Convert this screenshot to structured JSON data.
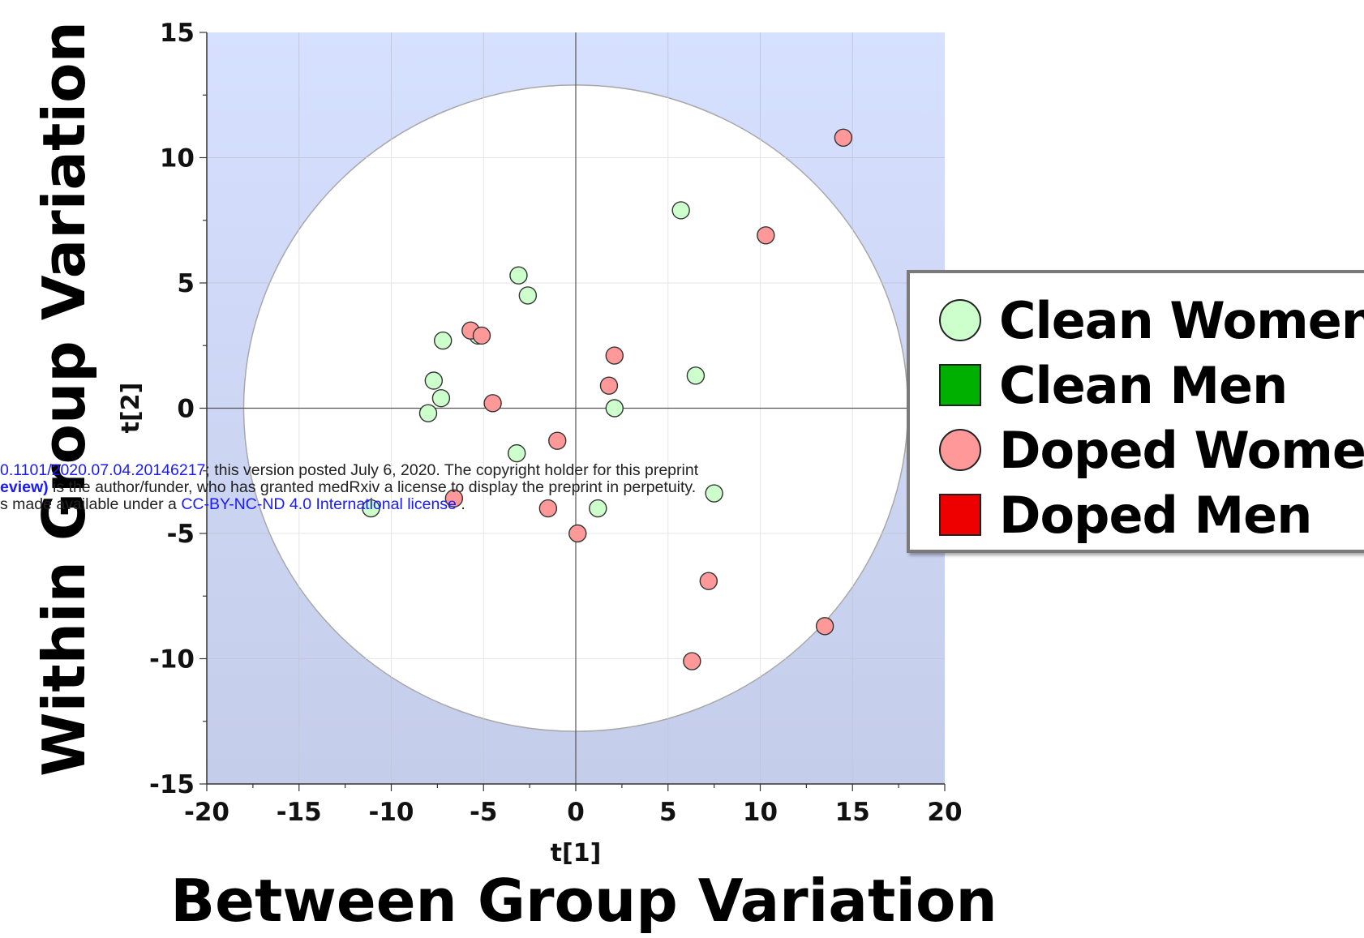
{
  "chart_data": {
    "type": "scatter",
    "title": "",
    "xlabel": "t[1]",
    "ylabel": "t[2]",
    "outer_xlabel": "Between Group Variation",
    "outer_ylabel": "Within Group Variation",
    "xlim": [
      -20,
      20
    ],
    "ylim": [
      -15,
      15
    ],
    "xticks": [
      -20,
      -15,
      -10,
      -5,
      0,
      5,
      10,
      15,
      20
    ],
    "yticks": [
      -15,
      -10,
      -5,
      0,
      5,
      10,
      15
    ],
    "grid": true,
    "legend_position": "right",
    "confidence_ellipse": {
      "center": [
        0,
        0
      ],
      "rx": 18,
      "ry": 12.9
    },
    "series": [
      {
        "name": "Clean Women",
        "marker": "circle",
        "color": "#ccffcc",
        "points": [
          {
            "x": 5.7,
            "y": 7.9
          },
          {
            "x": -3.1,
            "y": 5.3
          },
          {
            "x": -2.6,
            "y": 4.5
          },
          {
            "x": -7.2,
            "y": 2.7
          },
          {
            "x": -5.3,
            "y": 2.9
          },
          {
            "x": -7.7,
            "y": 1.1
          },
          {
            "x": -7.3,
            "y": 0.4
          },
          {
            "x": -8.0,
            "y": -0.2
          },
          {
            "x": 6.5,
            "y": 1.3
          },
          {
            "x": 2.1,
            "y": 0.0
          },
          {
            "x": -3.2,
            "y": -1.8
          },
          {
            "x": 7.5,
            "y": -3.4
          },
          {
            "x": 1.2,
            "y": -4.0
          },
          {
            "x": -11.1,
            "y": -4.0
          }
        ]
      },
      {
        "name": "Clean Men",
        "marker": "square",
        "color": "#00b000",
        "points": []
      },
      {
        "name": "Doped Women",
        "marker": "circle",
        "color": "#ff9999",
        "points": [
          {
            "x": 14.5,
            "y": 10.8
          },
          {
            "x": 10.3,
            "y": 6.9
          },
          {
            "x": -5.7,
            "y": 3.1
          },
          {
            "x": -5.1,
            "y": 2.9
          },
          {
            "x": 2.1,
            "y": 2.1
          },
          {
            "x": 1.8,
            "y": 0.9
          },
          {
            "x": -4.5,
            "y": 0.2
          },
          {
            "x": -1.0,
            "y": -1.3
          },
          {
            "x": -6.6,
            "y": -3.6
          },
          {
            "x": -1.5,
            "y": -4.0
          },
          {
            "x": 0.1,
            "y": -5.0
          },
          {
            "x": 7.2,
            "y": -6.9
          },
          {
            "x": 13.5,
            "y": -8.7
          },
          {
            "x": 6.3,
            "y": -10.1
          }
        ]
      },
      {
        "name": "Doped Men",
        "marker": "square",
        "color": "#ee0000",
        "points": []
      }
    ]
  },
  "watermark": {
    "line1_link": "0.1101/2020.07.04.20146217",
    "line1_text": "; this version posted July 6, 2020. The copyright holder for this preprint",
    "line2_bold": "eview)",
    "line2_text": " is the author/funder, who has granted medRxiv a license to display the preprint in perpetuity.",
    "line3_text": "s made available under a ",
    "line3_link": "CC-BY-NC-ND 4.0 International license",
    "line3_tail": " ."
  },
  "colors": {
    "plot_bg_top": "#d6e0ff",
    "plot_bg_bottom": "#c4cde9",
    "ellipse_fill": "#ffffff",
    "grid": "#c2c8dc",
    "zero_line": "#555555"
  }
}
